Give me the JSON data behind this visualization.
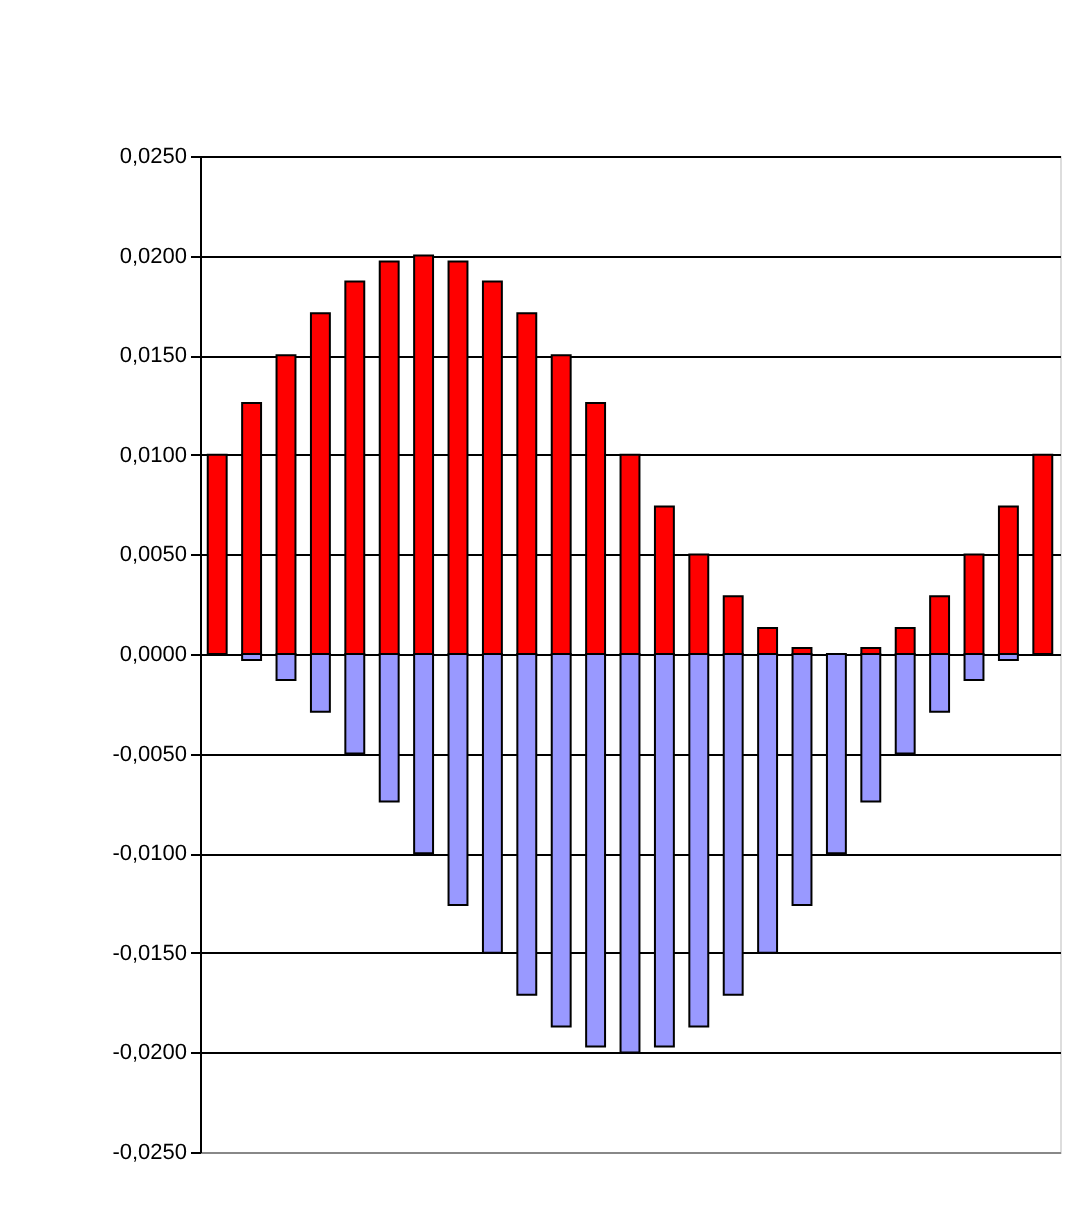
{
  "chart_data": {
    "type": "bar",
    "categories": [
      null,
      null,
      null,
      null,
      null,
      null,
      null,
      null,
      null,
      null,
      null,
      null,
      null,
      null,
      null,
      null,
      null,
      null,
      null,
      null,
      null,
      null,
      null,
      null,
      null
    ],
    "series": [
      {
        "color": "#ff0000",
        "values": [
          0.01,
          0.0126,
          0.015,
          0.0171,
          0.0187,
          0.0197,
          0.02,
          0.0197,
          0.0187,
          0.0171,
          0.015,
          0.0126,
          0.01,
          0.0074,
          0.005,
          0.0029,
          0.0013,
          0.0003,
          0.0,
          0.0003,
          0.0013,
          0.0029,
          0.005,
          0.0074,
          0.01
        ]
      },
      {
        "color": "#9999ff",
        "values": [
          0.0,
          -0.0003,
          -0.0013,
          -0.0029,
          -0.005,
          -0.0074,
          -0.01,
          -0.0126,
          -0.015,
          -0.0171,
          -0.0187,
          -0.0197,
          -0.02,
          -0.0197,
          -0.0187,
          -0.0171,
          -0.015,
          -0.0126,
          -0.01,
          -0.0074,
          -0.005,
          -0.0029,
          -0.0013,
          -0.0003,
          0.0
        ]
      }
    ],
    "ylim": [
      -0.025,
      0.025
    ],
    "yticks": [
      {
        "value": -0.025,
        "label": "-0,0250"
      },
      {
        "value": -0.02,
        "label": "-0,0200"
      },
      {
        "value": -0.015,
        "label": "-0,0150"
      },
      {
        "value": -0.01,
        "label": "-0,0100"
      },
      {
        "value": -0.005,
        "label": "-0,0050"
      },
      {
        "value": 0,
        "label": "0,0000"
      },
      {
        "value": 0.005,
        "label": "0,0050"
      },
      {
        "value": 0.01,
        "label": "0,0100"
      },
      {
        "value": 0.015,
        "label": "0,0150"
      },
      {
        "value": 0.02,
        "label": "0,0200"
      },
      {
        "value": 0.025,
        "label": "0,0250"
      }
    ],
    "grid": "y",
    "legend": false,
    "tick_labels": "y",
    "stacked": true
  }
}
